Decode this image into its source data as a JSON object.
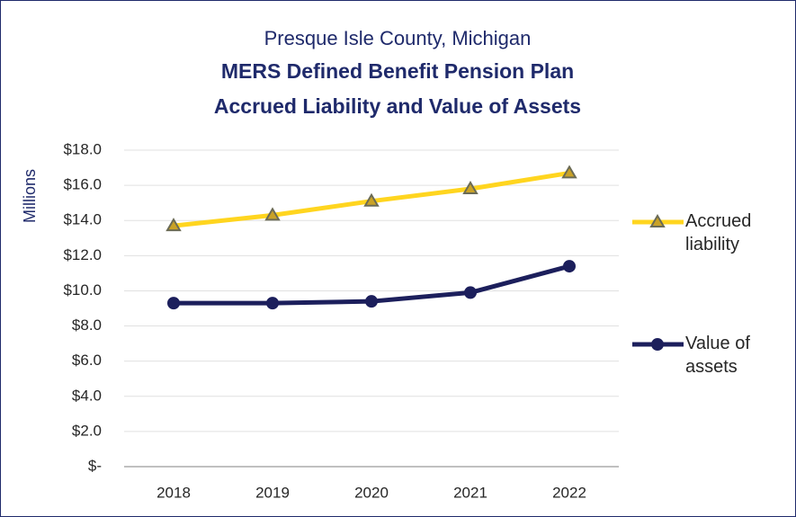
{
  "chart_data": {
    "type": "line",
    "supertitle": "Presque Isle County, Michigan",
    "title": "MERS Defined Benefit Pension Plan",
    "subtitle": "Accrued Liability and Value of Assets",
    "y_label": "Millions",
    "categories": [
      "2018",
      "2019",
      "2020",
      "2021",
      "2022"
    ],
    "series": [
      {
        "name": "Accrued liability",
        "color": "#FFD51F",
        "marker": "triangle",
        "values": [
          13.7,
          14.3,
          15.1,
          15.8,
          16.7
        ]
      },
      {
        "name": "Value of assets",
        "color": "#1C1F5C",
        "marker": "circle",
        "values": [
          9.3,
          9.3,
          9.4,
          9.9,
          11.4
        ]
      }
    ],
    "ylim": [
      0,
      18
    ],
    "yticks": [
      {
        "value": 0,
        "label": "$-"
      },
      {
        "value": 2,
        "label": "$2.0"
      },
      {
        "value": 4,
        "label": "$4.0"
      },
      {
        "value": 6,
        "label": "$6.0"
      },
      {
        "value": 8,
        "label": "$8.0"
      },
      {
        "value": 10,
        "label": "$10.0"
      },
      {
        "value": 12,
        "label": "$12.0"
      },
      {
        "value": 14,
        "label": "$14.0"
      },
      {
        "value": 16,
        "label": "$16.0"
      },
      {
        "value": 18,
        "label": "$18.0"
      }
    ],
    "grid": true,
    "legend": "right"
  }
}
